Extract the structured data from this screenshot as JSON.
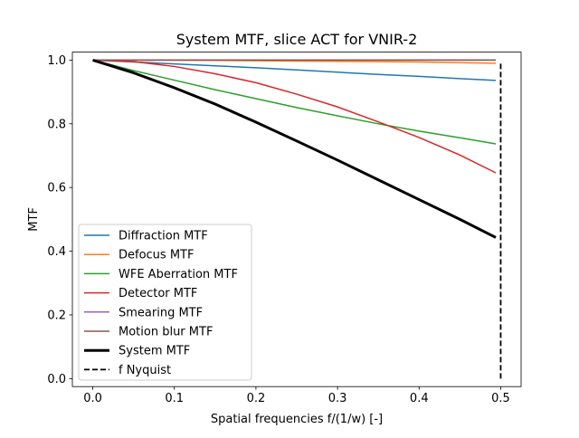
{
  "chart_data": {
    "type": "line",
    "title": "System MTF, slice ACT for VNIR-2",
    "xlabel": "Spatial frequencies f/(1/w) [-]",
    "ylabel": "MTF",
    "xlim": [
      -0.025,
      0.525
    ],
    "ylim": [
      -0.025,
      1.025
    ],
    "xticks": [
      0.0,
      0.1,
      0.2,
      0.3,
      0.4,
      0.5
    ],
    "xtick_labels": [
      "0.0",
      "0.1",
      "0.2",
      "0.3",
      "0.4",
      "0.5"
    ],
    "yticks": [
      0.0,
      0.2,
      0.4,
      0.6,
      0.8,
      1.0
    ],
    "ytick_labels": [
      "0.0",
      "0.2",
      "0.4",
      "0.6",
      "0.8",
      "1.0"
    ],
    "grid": false,
    "legend_position": "lower-left",
    "x": [
      0.0,
      0.05,
      0.1,
      0.15,
      0.2,
      0.25,
      0.3,
      0.35,
      0.4,
      0.45,
      0.494
    ],
    "series": [
      {
        "name": "Diffraction MTF",
        "color": "#1f77b4",
        "width": 1.5,
        "dash": "solid",
        "values": [
          1.0,
          0.994,
          0.988,
          0.982,
          0.976,
          0.969,
          0.962,
          0.955,
          0.949,
          0.942,
          0.936
        ]
      },
      {
        "name": "Defocus MTF",
        "color": "#ff7f0e",
        "width": 1.5,
        "dash": "solid",
        "values": [
          1.0,
          0.9999,
          0.9996,
          0.999,
          0.998,
          0.997,
          0.996,
          0.995,
          0.994,
          0.992,
          0.99
        ]
      },
      {
        "name": "WFE Aberration MTF",
        "color": "#2ca02c",
        "width": 1.5,
        "dash": "solid",
        "values": [
          1.0,
          0.967,
          0.937,
          0.907,
          0.879,
          0.851,
          0.825,
          0.8,
          0.777,
          0.756,
          0.737
        ]
      },
      {
        "name": "Detector MTF",
        "color": "#d62728",
        "width": 1.5,
        "dash": "solid",
        "values": [
          1.0,
          0.995,
          0.98,
          0.957,
          0.929,
          0.893,
          0.853,
          0.806,
          0.757,
          0.702,
          0.646
        ]
      },
      {
        "name": "Smearing MTF",
        "color": "#9467bd",
        "width": 1.5,
        "dash": "solid",
        "values": [
          1.0,
          1.0,
          1.0,
          1.0,
          1.0,
          1.0,
          1.0,
          1.0,
          1.0,
          1.0,
          1.0
        ]
      },
      {
        "name": "Motion blur MTF",
        "color": "#8c564b",
        "width": 1.5,
        "dash": "solid",
        "values": [
          1.0,
          1.0,
          1.0,
          1.0,
          1.0,
          1.0,
          1.0,
          1.0,
          1.0,
          1.0,
          1.0
        ]
      },
      {
        "name": "System MTF",
        "color": "#000000",
        "width": 3.0,
        "dash": "solid",
        "values": [
          1.0,
          0.96,
          0.913,
          0.862,
          0.805,
          0.746,
          0.686,
          0.624,
          0.562,
          0.5,
          0.443
        ]
      }
    ],
    "nyquist": {
      "name": "f Nyquist",
      "color": "#000000",
      "width": 1.8,
      "dash": "dashed",
      "x": 0.5,
      "y_range": [
        0.0,
        0.99
      ]
    }
  }
}
